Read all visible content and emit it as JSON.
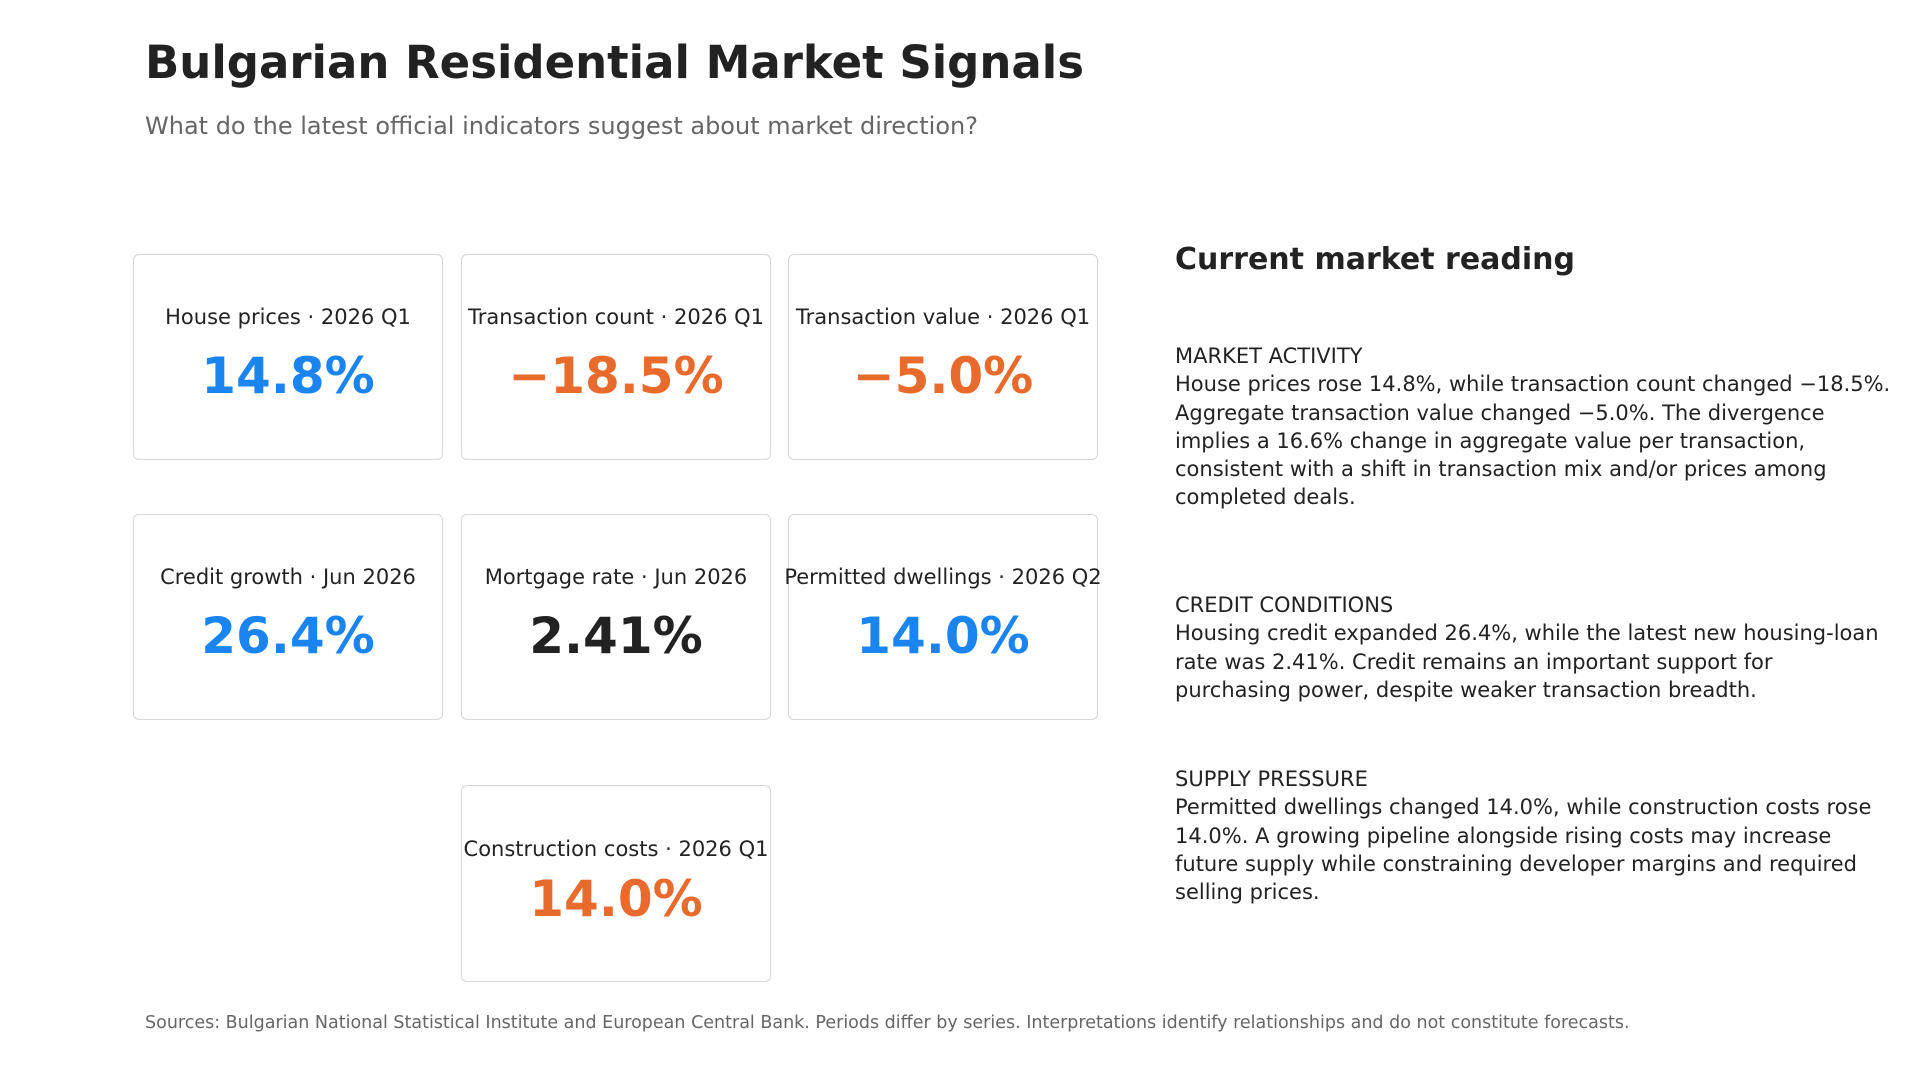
{
  "header": {
    "title": "Bulgarian Residential Market Signals",
    "subtitle": "What do the latest official indicators suggest about market direction?"
  },
  "colors": {
    "positive_blue": "#1a85f0",
    "negative_orange": "#e86a2c",
    "neutral_dark": "#222222"
  },
  "cards": [
    {
      "label": "House prices · 2026 Q1",
      "value": "14.8%",
      "color": "#1a85f0"
    },
    {
      "label": "Transaction count · 2026 Q1",
      "value": "−18.5%",
      "color": "#e86a2c"
    },
    {
      "label": "Transaction value · 2026 Q1",
      "value": "−5.0%",
      "color": "#e86a2c"
    },
    {
      "label": "Credit growth · Jun 2026",
      "value": "26.4%",
      "color": "#1a85f0"
    },
    {
      "label": "Mortgage rate · Jun 2026",
      "value": "2.41%",
      "color": "#222222"
    },
    {
      "label": "Permitted dwellings · 2026 Q2",
      "value": "14.0%",
      "color": "#1a85f0"
    },
    {
      "label": "Construction costs · 2026 Q1",
      "value": "14.0%",
      "color": "#e86a2c"
    }
  ],
  "reading": {
    "title": "Current market reading",
    "sections": [
      {
        "heading": "MARKET ACTIVITY",
        "lines": [
          "House prices rose 14.8%, while transaction count changed −18.5%.",
          "Aggregate transaction value changed −5.0%. The divergence",
          "implies a 16.6% change in aggregate value per transaction,",
          "consistent with a shift in transaction mix and/or prices among",
          "completed deals."
        ]
      },
      {
        "heading": "CREDIT CONDITIONS",
        "lines": [
          "Housing credit expanded 26.4%, while the latest new housing-loan",
          "rate was 2.41%. Credit remains an important support for",
          "purchasing power, despite weaker transaction breadth."
        ]
      },
      {
        "heading": "SUPPLY PRESSURE",
        "lines": [
          "Permitted dwellings changed 14.0%, while construction costs rose",
          "14.0%. A growing pipeline alongside rising costs may increase",
          "future supply while constraining developer margins and required",
          "selling prices."
        ]
      }
    ]
  },
  "footer": {
    "sources": "Sources: Bulgarian National Statistical Institute and European Central Bank. Periods differ by series. Interpretations identify relationships and do not constitute forecasts."
  }
}
